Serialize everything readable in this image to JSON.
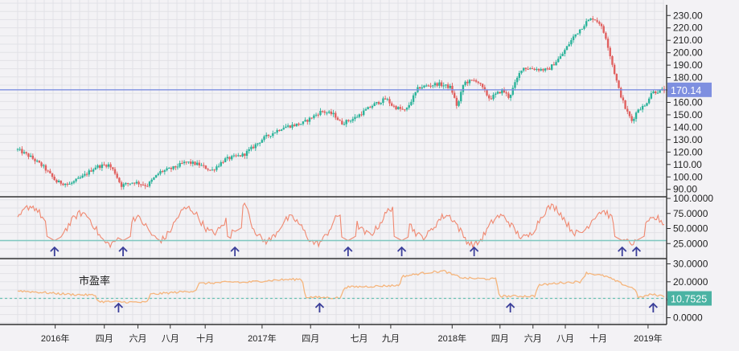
{
  "chart_data": {
    "type": "candlestick",
    "grid": true,
    "colors": {
      "up": "#2bb39a",
      "down": "#e0605f",
      "rsi": "#f08870",
      "pe": "#f5b57c",
      "hline_price": "#7e8fe0",
      "hline_rsi": "#7fc8c0",
      "hline_pe": "#6ac2b4",
      "arrow": "#3b3f9a",
      "badge_price": "#7e8fe0",
      "badge_pe": "#4bb3a3"
    },
    "x_ticks": [
      "2016年",
      "四月",
      "六月",
      "八月",
      "十月",
      "2017年",
      "四月",
      "七月",
      "九月",
      "2018年",
      "四月",
      "六月",
      "八月",
      "十月",
      "2019年"
    ],
    "x_tick_pos": [
      0.058,
      0.134,
      0.186,
      0.236,
      0.29,
      0.378,
      0.453,
      0.528,
      0.577,
      0.672,
      0.746,
      0.797,
      0.847,
      0.898,
      0.975
    ],
    "price_panel": {
      "y_ticks": [
        "90.00",
        "100.00",
        "110.00",
        "120.00",
        "130.00",
        "140.00",
        "150.00",
        "160.00",
        "170.00",
        "180.00",
        "190.00",
        "200.00",
        "210.00",
        "220.00",
        "230.00"
      ],
      "ylim": [
        84,
        236
      ],
      "hline": 170.14,
      "hline_label": "170.14",
      "anchors": [
        [
          0.0,
          122
        ],
        [
          0.02,
          116
        ],
        [
          0.04,
          108
        ],
        [
          0.06,
          96
        ],
        [
          0.08,
          94
        ],
        [
          0.1,
          100
        ],
        [
          0.12,
          108
        ],
        [
          0.14,
          110
        ],
        [
          0.15,
          104
        ],
        [
          0.16,
          93
        ],
        [
          0.18,
          96
        ],
        [
          0.2,
          93
        ],
        [
          0.22,
          104
        ],
        [
          0.24,
          107
        ],
        [
          0.26,
          112
        ],
        [
          0.28,
          110
        ],
        [
          0.3,
          105
        ],
        [
          0.32,
          114
        ],
        [
          0.35,
          118
        ],
        [
          0.38,
          131
        ],
        [
          0.41,
          140
        ],
        [
          0.44,
          143
        ],
        [
          0.47,
          153
        ],
        [
          0.49,
          150
        ],
        [
          0.5,
          143
        ],
        [
          0.52,
          147
        ],
        [
          0.55,
          158
        ],
        [
          0.57,
          163
        ],
        [
          0.58,
          157
        ],
        [
          0.6,
          153
        ],
        [
          0.62,
          172
        ],
        [
          0.65,
          175
        ],
        [
          0.67,
          172
        ],
        [
          0.68,
          156
        ],
        [
          0.69,
          176
        ],
        [
          0.71,
          178
        ],
        [
          0.73,
          163
        ],
        [
          0.75,
          170
        ],
        [
          0.76,
          164
        ],
        [
          0.78,
          188
        ],
        [
          0.8,
          187
        ],
        [
          0.82,
          186
        ],
        [
          0.84,
          197
        ],
        [
          0.86,
          213
        ],
        [
          0.88,
          225
        ],
        [
          0.89,
          228
        ],
        [
          0.9,
          224
        ],
        [
          0.91,
          212
        ],
        [
          0.92,
          190
        ],
        [
          0.93,
          170
        ],
        [
          0.94,
          155
        ],
        [
          0.95,
          145
        ],
        [
          0.96,
          155
        ],
        [
          0.97,
          157
        ],
        [
          0.98,
          168
        ],
        [
          1.0,
          170
        ]
      ]
    },
    "rsi_panel": {
      "y_ticks": [
        "25.0000",
        "50.0000",
        "75.0000",
        "100.0000"
      ],
      "ylim": [
        0,
        100
      ],
      "hline": 30,
      "arrow_pos": [
        0.057,
        0.163,
        0.336,
        0.511,
        0.594,
        0.706,
        0.935,
        0.957
      ]
    },
    "pe_panel": {
      "label": "市盈率",
      "y_ticks": [
        "0.0000",
        "10.0000",
        "20.0000",
        "30.0000"
      ],
      "ylim": [
        -2,
        32
      ],
      "hline": 10.7525,
      "hline_label": "10.7525",
      "anchors": [
        [
          0.0,
          15
        ],
        [
          0.04,
          14
        ],
        [
          0.08,
          13
        ],
        [
          0.12,
          12.5
        ],
        [
          0.125,
          9
        ],
        [
          0.2,
          8.5
        ],
        [
          0.205,
          13
        ],
        [
          0.24,
          14
        ],
        [
          0.275,
          15
        ],
        [
          0.28,
          19
        ],
        [
          0.34,
          20
        ],
        [
          0.345,
          19.5
        ],
        [
          0.4,
          21
        ],
        [
          0.44,
          21.5
        ],
        [
          0.445,
          11.5
        ],
        [
          0.5,
          11
        ],
        [
          0.505,
          17
        ],
        [
          0.55,
          17.5
        ],
        [
          0.59,
          18
        ],
        [
          0.595,
          23
        ],
        [
          0.63,
          25
        ],
        [
          0.66,
          26
        ],
        [
          0.672,
          24
        ],
        [
          0.69,
          22
        ],
        [
          0.74,
          21.5
        ],
        [
          0.745,
          12
        ],
        [
          0.8,
          12
        ],
        [
          0.805,
          18
        ],
        [
          0.84,
          19.5
        ],
        [
          0.87,
          20
        ],
        [
          0.88,
          25
        ],
        [
          0.91,
          23
        ],
        [
          0.94,
          18
        ],
        [
          0.955,
          16
        ],
        [
          0.96,
          11
        ],
        [
          0.98,
          13
        ],
        [
          1.0,
          12
        ]
      ],
      "arrow_pos": [
        0.156,
        0.467,
        0.762,
        0.983
      ]
    }
  }
}
